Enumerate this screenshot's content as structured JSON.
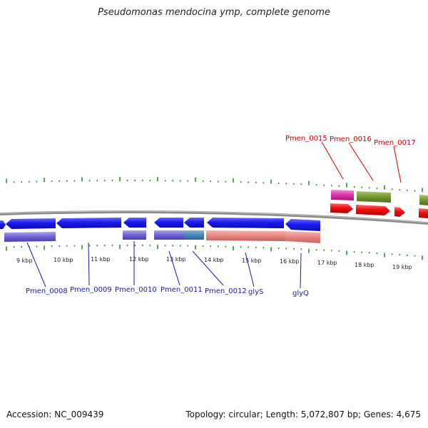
{
  "title": "Pseudomonas mendocina ymp, complete genome",
  "footer": {
    "accession": "Accession: NC_009439",
    "summary": "Topology: circular; Length: 5,072,807 bp; Genes: 4,675"
  },
  "colors": {
    "backbone": "#7a7a7a",
    "tick": "#2f8a2f",
    "forward_cds": "#e8170f",
    "reverse_cds": "#1a1af0",
    "forward_label": "#cc0000",
    "reverse_label": "#1a1aa8"
  },
  "kbp_labels": [
    "9 kbp",
    "10 kbp",
    "11 kbp",
    "12 kbp",
    "13 kbp",
    "14 kbp",
    "15 kbp",
    "16 kbp",
    "17 kbp",
    "18 kbp",
    "19 kbp"
  ],
  "forward_genes": [
    "Pmen_0015",
    "Pmen_0016",
    "Pmen_0017"
  ],
  "reverse_genes": [
    "Pmen_0008",
    "Pmen_0009",
    "Pmen_0010",
    "Pmen_0011",
    "Pmen_0012",
    "glyS",
    "glyQ"
  ]
}
